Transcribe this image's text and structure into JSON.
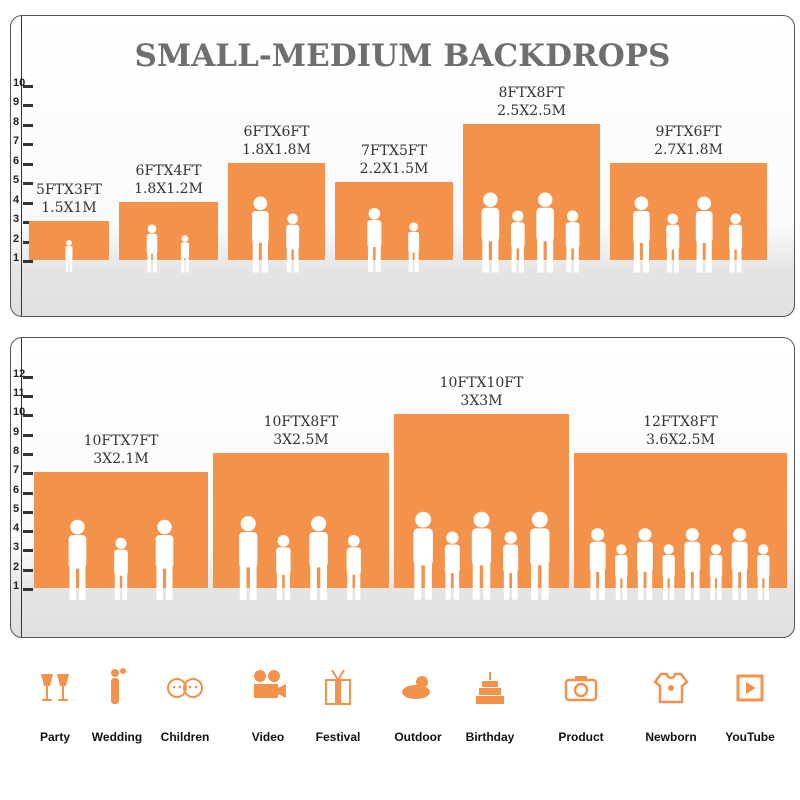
{
  "title": "SMALL-MEDIUM BACKDROPS",
  "accent_color": "#f3924a",
  "panel1": {
    "axis_ticks": [
      "1",
      "2",
      "3",
      "4",
      "5",
      "6",
      "7",
      "8",
      "9",
      "10"
    ],
    "backdrops": [
      {
        "size_ft": "5FTX3FT",
        "size_m": "1.5X1M",
        "width_ft": 5,
        "height_ft": 3
      },
      {
        "size_ft": "6FTX4FT",
        "size_m": "1.8X1.2M",
        "width_ft": 6,
        "height_ft": 4
      },
      {
        "size_ft": "6FTX6FT",
        "size_m": "1.8X1.8M",
        "width_ft": 6,
        "height_ft": 6
      },
      {
        "size_ft": "7FTX5FT",
        "size_m": "2.2X1.5M",
        "width_ft": 7,
        "height_ft": 5
      },
      {
        "size_ft": "8FTX8FT",
        "size_m": "2.5X2.5M",
        "width_ft": 8,
        "height_ft": 8
      },
      {
        "size_ft": "9FTX6FT",
        "size_m": "2.7X1.8M",
        "width_ft": 9,
        "height_ft": 6
      }
    ]
  },
  "panel2": {
    "axis_ticks": [
      "1",
      "2",
      "3",
      "4",
      "5",
      "6",
      "7",
      "8",
      "9",
      "10",
      "11",
      "12"
    ],
    "backdrops": [
      {
        "size_ft": "10FTX7FT",
        "size_m": "3X2.1M",
        "width_ft": 10,
        "height_ft": 7
      },
      {
        "size_ft": "10FTX8FT",
        "size_m": "3X2.5M",
        "width_ft": 10,
        "height_ft": 8
      },
      {
        "size_ft": "10FTX10FT",
        "size_m": "3X3M",
        "width_ft": 10,
        "height_ft": 10
      },
      {
        "size_ft": "12FTX8FT",
        "size_m": "3.6X2.5M",
        "width_ft": 12,
        "height_ft": 8
      }
    ]
  },
  "uses": [
    {
      "label": "Party",
      "icon": "champagne-glasses-icon"
    },
    {
      "label": "Wedding",
      "icon": "wedding-couple-icon"
    },
    {
      "label": "Children",
      "icon": "children-faces-icon"
    },
    {
      "label": "Video",
      "icon": "movie-camera-icon"
    },
    {
      "label": "Festival",
      "icon": "gift-box-icon"
    },
    {
      "label": "Outdoor",
      "icon": "cloud-sun-icon"
    },
    {
      "label": "Birthday",
      "icon": "birthday-cake-icon"
    },
    {
      "label": "Product",
      "icon": "camera-icon"
    },
    {
      "label": "Newborn",
      "icon": "baby-onesie-icon"
    },
    {
      "label": "YouTube",
      "icon": "play-button-icon"
    }
  ]
}
